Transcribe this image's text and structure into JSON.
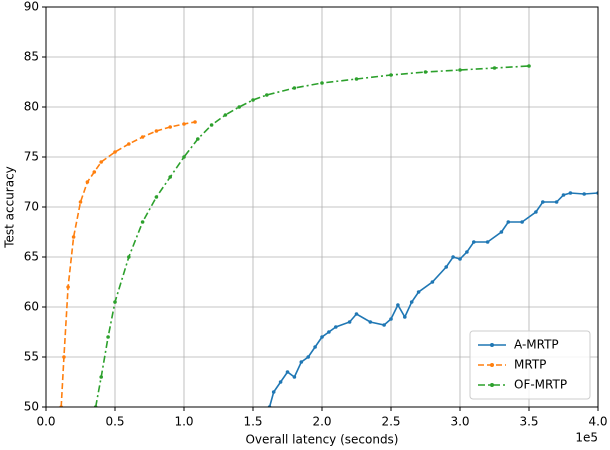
{
  "chart_data": {
    "type": "line",
    "xlabel": "Overall latency (seconds)",
    "ylabel": "Test accuracy",
    "x_offset_label": "1e5",
    "xlim": [
      0,
      4
    ],
    "ylim": [
      50,
      90
    ],
    "xticks": [
      {
        "value": 0,
        "label": "0.0"
      },
      0.5,
      {
        "value": 1,
        "label": "1.0"
      },
      1.5,
      {
        "value": 2,
        "label": "2.0"
      },
      2.5,
      {
        "value": 3,
        "label": "3.0"
      },
      3.5,
      {
        "value": 4,
        "label": "4.0"
      }
    ],
    "yticks": [
      50,
      55,
      60,
      65,
      70,
      75,
      80,
      85,
      90
    ],
    "grid": true,
    "legend": "lower right",
    "series": [
      {
        "name": "A-MRTP",
        "color": "#1f77b4",
        "style": "solid",
        "x": [
          1.62,
          1.65,
          1.7,
          1.75,
          1.8,
          1.85,
          1.9,
          1.95,
          2.0,
          2.05,
          2.1,
          2.2,
          2.25,
          2.35,
          2.45,
          2.5,
          2.55,
          2.6,
          2.65,
          2.7,
          2.8,
          2.9,
          2.95,
          3.0,
          3.05,
          3.1,
          3.2,
          3.3,
          3.35,
          3.45,
          3.55,
          3.6,
          3.7,
          3.75,
          3.8,
          3.9,
          4.0
        ],
        "values": [
          50,
          51.5,
          52.5,
          53.5,
          53,
          54.5,
          55,
          56,
          57,
          57.5,
          58,
          58.5,
          59.3,
          58.5,
          58.2,
          58.8,
          60.2,
          59,
          60.5,
          61.5,
          62.5,
          64,
          65,
          64.8,
          65.5,
          66.5,
          66.5,
          67.5,
          68.5,
          68.5,
          69.5,
          70.5,
          70.5,
          71.2,
          71.4,
          71.3,
          71.4
        ]
      },
      {
        "name": "MRTP",
        "color": "#ff7f0e",
        "style": "dashed",
        "x": [
          0.11,
          0.13,
          0.16,
          0.2,
          0.25,
          0.3,
          0.35,
          0.4,
          0.5,
          0.6,
          0.7,
          0.8,
          0.9,
          1.0,
          1.08
        ],
        "values": [
          50,
          55,
          62,
          67,
          70.5,
          72.5,
          73.5,
          74.5,
          75.5,
          76.3,
          77,
          77.6,
          78,
          78.3,
          78.5
        ]
      },
      {
        "name": "OF-MRTP",
        "color": "#2ca02c",
        "style": "dashdot",
        "x": [
          0.36,
          0.4,
          0.45,
          0.5,
          0.6,
          0.7,
          0.8,
          0.9,
          1.0,
          1.1,
          1.2,
          1.3,
          1.4,
          1.5,
          1.6,
          1.8,
          2.0,
          2.25,
          2.5,
          2.75,
          3.0,
          3.25,
          3.5
        ],
        "values": [
          50,
          53,
          57,
          60.5,
          65,
          68.5,
          71,
          73,
          75,
          76.8,
          78.2,
          79.2,
          80,
          80.7,
          81.2,
          81.9,
          82.4,
          82.8,
          83.2,
          83.5,
          83.7,
          83.9,
          84.1
        ]
      }
    ]
  }
}
